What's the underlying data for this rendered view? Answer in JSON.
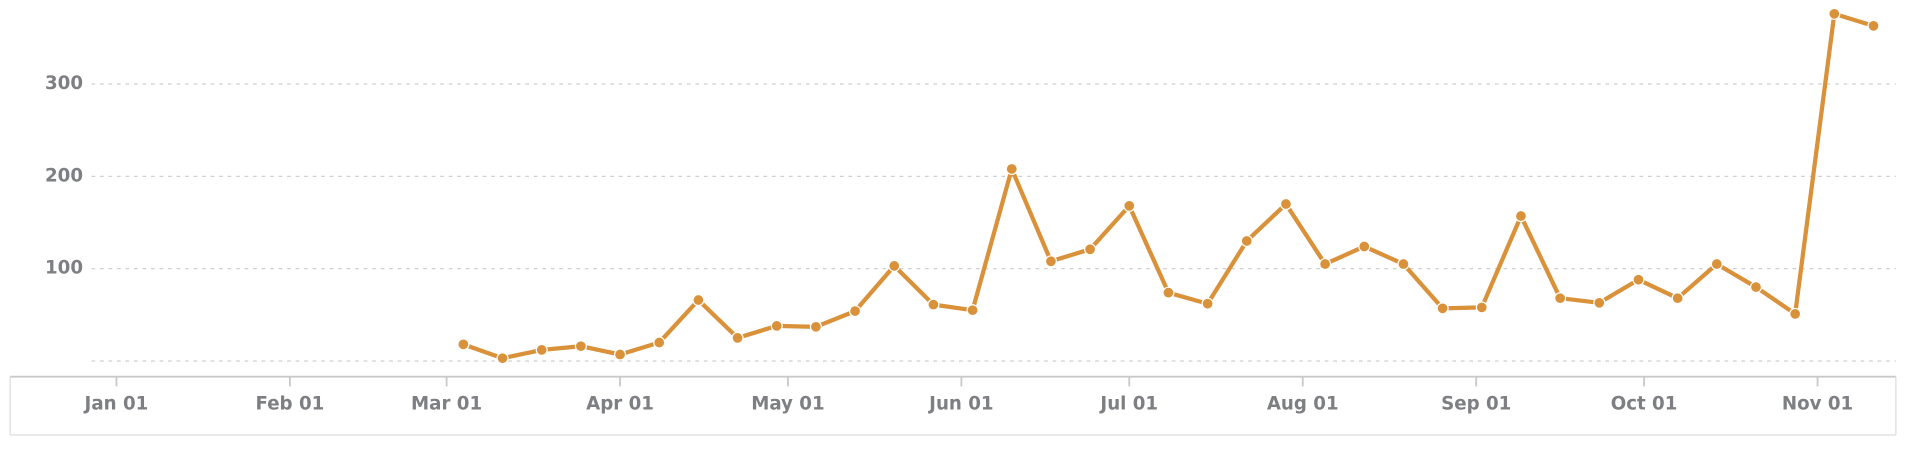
{
  "chart_data": {
    "type": "line",
    "color": "#d9913a",
    "x": [
      62,
      69,
      76,
      83,
      90,
      97,
      104,
      111,
      118,
      125,
      132,
      139,
      146,
      153,
      160,
      167,
      174,
      181,
      188,
      195,
      202,
      209,
      216,
      223,
      230,
      237,
      244,
      251,
      258,
      265,
      272,
      279,
      286,
      293,
      300,
      307,
      314
    ],
    "values": [
      18,
      3,
      12,
      16,
      7,
      20,
      66,
      25,
      38,
      37,
      54,
      103,
      61,
      55,
      208,
      108,
      121,
      168,
      74,
      62,
      130,
      170,
      105,
      124,
      105,
      57,
      58,
      157,
      68,
      63,
      88,
      68,
      105,
      80,
      51,
      376,
      363
    ],
    "xlim": [
      -19,
      318
    ],
    "ylim": [
      -17,
      391
    ],
    "xticks": [
      {
        "value": 0,
        "label": "Jan 01"
      },
      {
        "value": 31,
        "label": "Feb 01"
      },
      {
        "value": 59,
        "label": "Mar 01"
      },
      {
        "value": 90,
        "label": "Apr 01"
      },
      {
        "value": 120,
        "label": "May 01"
      },
      {
        "value": 151,
        "label": "Jun 01"
      },
      {
        "value": 181,
        "label": "Jul 01"
      },
      {
        "value": 212,
        "label": "Aug 01"
      },
      {
        "value": 243,
        "label": "Sep 01"
      },
      {
        "value": 273,
        "label": "Oct 01"
      },
      {
        "value": 304,
        "label": "Nov 01"
      }
    ],
    "yticks": [
      100,
      200,
      300
    ],
    "grid": true
  }
}
